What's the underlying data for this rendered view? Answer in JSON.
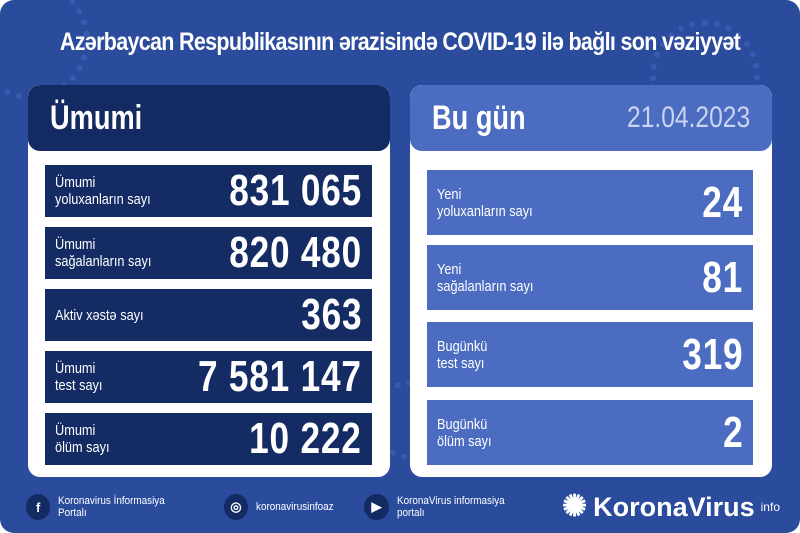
{
  "title": "Azərbaycan Respublikasının ərazisində COVID-19 ilə bağlı son vəziyyət",
  "colors": {
    "background": "#2b4b9c",
    "dark": "#132a63",
    "light": "#4b6cc1"
  },
  "left": {
    "header": "Ümumi",
    "rows": [
      {
        "label": "Ümumi\nyoluxanların sayı",
        "value": "831 065"
      },
      {
        "label": "Ümumi\nsağalanların sayı",
        "value": "820 480"
      },
      {
        "label": "Aktiv xəstə sayı",
        "value": "363"
      },
      {
        "label": "Ümumi\ntest sayı",
        "value": "7 581 147"
      },
      {
        "label": "Ümumi\nölüm sayı",
        "value": "10 222"
      }
    ]
  },
  "right": {
    "header": "Bu gün",
    "date": "21.04.2023",
    "rows": [
      {
        "label": "Yeni\nyoluxanların sayı",
        "value": "24"
      },
      {
        "label": "Yeni\nsağalanların sayı",
        "value": "81"
      },
      {
        "label": "Bugünkü\ntest sayı",
        "value": "319"
      },
      {
        "label": "Bugünkü\nölüm sayı",
        "value": "2"
      }
    ]
  },
  "footer": {
    "facebook": "Koronavirus İnformasiya Portalı",
    "instagram": "koronavirusinfoaz",
    "youtube": "KoronaVirus informasiya portalı",
    "brand": "KoronaVirus",
    "brand_sup": "info",
    "icons": [
      "facebook-icon",
      "instagram-icon",
      "youtube-icon",
      "sun-virus-logo-icon"
    ]
  }
}
